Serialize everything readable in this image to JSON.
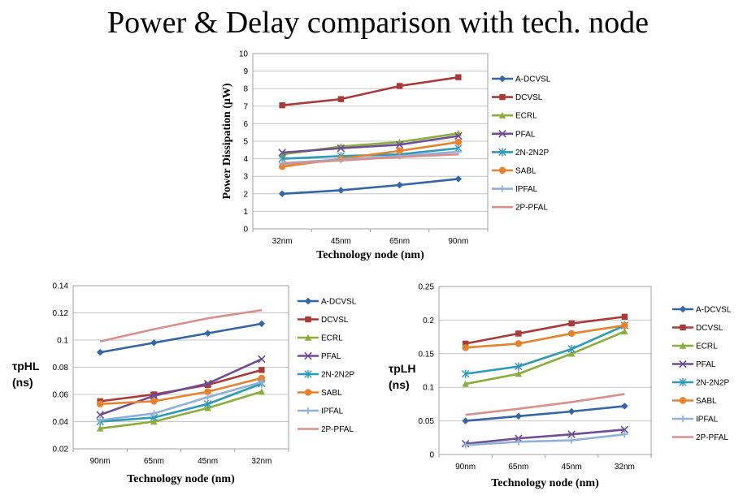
{
  "title": "Power & Delay comparison with tech. node",
  "chart_data": [
    {
      "type": "line",
      "categories": [
        "32nm",
        "45nm",
        "65nm",
        "90nm"
      ],
      "xlabel": "Technology node (nm)",
      "ylabel": "Power Dissipation (μW)",
      "ylim": [
        0,
        10
      ],
      "yticks": [
        0,
        1,
        2,
        3,
        4,
        5,
        6,
        7,
        8,
        9,
        10
      ],
      "ytick_labels": [
        "0",
        "1",
        "2",
        "3",
        "4",
        "5",
        "6",
        "7",
        "8",
        "9",
        "10"
      ],
      "grid": true,
      "legend_position": "right",
      "series": [
        {
          "name": "A-DCVSL",
          "values": [
            2.0,
            2.2,
            2.5,
            2.85
          ],
          "color": "#3465a4",
          "marker": "diamond"
        },
        {
          "name": "DCVSL",
          "values": [
            7.05,
            7.4,
            8.15,
            8.65
          ],
          "color": "#a83a3a",
          "marker": "square"
        },
        {
          "name": "ECRL",
          "values": [
            4.25,
            4.7,
            4.95,
            5.45
          ],
          "color": "#8aae3c",
          "marker": "triangle"
        },
        {
          "name": "PFAL",
          "values": [
            4.35,
            4.6,
            4.8,
            5.3
          ],
          "color": "#6e4d96",
          "marker": "x"
        },
        {
          "name": "2N-2N2P",
          "values": [
            4.0,
            4.15,
            4.25,
            4.6
          ],
          "color": "#2f99b8",
          "marker": "star"
        },
        {
          "name": "SABL",
          "values": [
            3.55,
            4.0,
            4.45,
            4.95
          ],
          "color": "#e6822e",
          "marker": "circle"
        },
        {
          "name": "IPFAL",
          "values": [
            3.75,
            3.95,
            4.15,
            4.4
          ],
          "color": "#8fb0d8",
          "marker": "plus"
        },
        {
          "name": "2P-PFAL",
          "values": [
            3.7,
            3.9,
            4.1,
            4.25
          ],
          "color": "#d9908c",
          "marker": "none"
        }
      ]
    },
    {
      "type": "line",
      "categories": [
        "90nm",
        "65nm",
        "45nm",
        "32nm"
      ],
      "xlabel": "Technology node (nm)",
      "ylabel": "τpHL (ns)",
      "ylim": [
        0.02,
        0.14
      ],
      "yticks": [
        0.02,
        0.04,
        0.06,
        0.08,
        0.1,
        0.12,
        0.14
      ],
      "ytick_labels": [
        "0.02",
        "0.04",
        "0.06",
        "0.08",
        "0.1",
        "0.12",
        "0.14"
      ],
      "grid": true,
      "legend_position": "right",
      "series": [
        {
          "name": "A-DCVSL",
          "values": [
            0.091,
            0.098,
            0.105,
            0.112
          ],
          "color": "#3465a4",
          "marker": "diamond"
        },
        {
          "name": "DCVSL",
          "values": [
            0.055,
            0.06,
            0.067,
            0.078
          ],
          "color": "#a83a3a",
          "marker": "square"
        },
        {
          "name": "ECRL",
          "values": [
            0.035,
            0.04,
            0.05,
            0.062
          ],
          "color": "#8aae3c",
          "marker": "triangle"
        },
        {
          "name": "PFAL",
          "values": [
            0.045,
            0.059,
            0.068,
            0.086
          ],
          "color": "#6e4d96",
          "marker": "x"
        },
        {
          "name": "2N-2N2P",
          "values": [
            0.04,
            0.043,
            0.053,
            0.068
          ],
          "color": "#2f99b8",
          "marker": "star"
        },
        {
          "name": "SABL",
          "values": [
            0.053,
            0.055,
            0.062,
            0.072
          ],
          "color": "#e6822e",
          "marker": "circle"
        },
        {
          "name": "IPFAL",
          "values": [
            0.041,
            0.046,
            0.058,
            0.069
          ],
          "color": "#8fb0d8",
          "marker": "plus"
        },
        {
          "name": "2P-PFAL",
          "values": [
            0.099,
            0.108,
            0.116,
            0.122
          ],
          "color": "#d9908c",
          "marker": "none"
        }
      ]
    },
    {
      "type": "line",
      "categories": [
        "90nm",
        "65nm",
        "45nm",
        "32nm"
      ],
      "xlabel": "Technology node (nm)",
      "ylabel": "τpLH (ns)",
      "ylim": [
        0,
        0.25
      ],
      "yticks": [
        0,
        0.05,
        0.1,
        0.15,
        0.2,
        0.25
      ],
      "ytick_labels": [
        "0",
        "0.05",
        "0.1",
        "0.15",
        "0.2",
        "0.25"
      ],
      "grid": true,
      "legend_position": "right",
      "series": [
        {
          "name": "A-DCVSL",
          "values": [
            0.05,
            0.057,
            0.064,
            0.072
          ],
          "color": "#3465a4",
          "marker": "diamond"
        },
        {
          "name": "DCVSL",
          "values": [
            0.165,
            0.18,
            0.195,
            0.205
          ],
          "color": "#a83a3a",
          "marker": "square"
        },
        {
          "name": "ECRL",
          "values": [
            0.105,
            0.12,
            0.15,
            0.183
          ],
          "color": "#8aae3c",
          "marker": "triangle"
        },
        {
          "name": "PFAL",
          "values": [
            0.016,
            0.024,
            0.03,
            0.037
          ],
          "color": "#6e4d96",
          "marker": "x"
        },
        {
          "name": "2N-2N2P",
          "values": [
            0.12,
            0.131,
            0.157,
            0.192
          ],
          "color": "#2f99b8",
          "marker": "star"
        },
        {
          "name": "SABL",
          "values": [
            0.159,
            0.165,
            0.18,
            0.192
          ],
          "color": "#e6822e",
          "marker": "circle"
        },
        {
          "name": "IPFAL",
          "values": [
            0.014,
            0.019,
            0.021,
            0.03
          ],
          "color": "#8fb0d8",
          "marker": "plus"
        },
        {
          "name": "2P-PFAL",
          "values": [
            0.059,
            0.068,
            0.078,
            0.09
          ],
          "color": "#d9908c",
          "marker": "none"
        }
      ]
    }
  ]
}
